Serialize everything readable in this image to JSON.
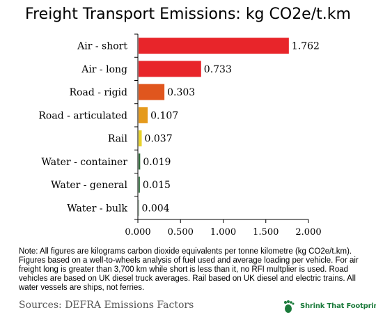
{
  "title": "Freight Transport Emissions: kg CO2e/t.km",
  "chart_data": {
    "type": "bar",
    "orientation": "horizontal",
    "categories": [
      "Air - short",
      "Air - long",
      "Road - rigid",
      "Road - articulated",
      "Rail",
      "Water - container",
      "Water - general",
      "Water - bulk"
    ],
    "values": [
      1.762,
      0.733,
      0.303,
      0.107,
      0.037,
      0.019,
      0.015,
      0.004
    ],
    "value_labels": [
      "1.762",
      "0.733",
      "0.303",
      "0.107",
      "0.037",
      "0.019",
      "0.015",
      "0.004"
    ],
    "bar_colors": [
      "#e8252a",
      "#e8252a",
      "#e0561e",
      "#e59a1c",
      "#e8d22a",
      "#2f6d3b",
      "#2f6d3b",
      "#2f6d3b"
    ],
    "xlim": [
      0,
      2
    ],
    "xticks": [
      "0.000",
      "0.500",
      "1.000",
      "1.500",
      "2.000"
    ],
    "xlabel": "",
    "ylabel": "",
    "grid": false,
    "legend": "none"
  },
  "note": "Note:  All figures are kilograms carbon dioxide equivalents per tonne kilometre (kg CO2e/t.km). Figures based on a well-to-wheels analysis of fuel used and average loading per vehicle. For air freight long is greater than 3,700 km while short is less than it, no RFI multplier is used.  Road vehicles are based on UK diesel truck averages.  Rail based on UK diesel and electric trains.  All water vessels are ships, not ferries.",
  "source": "Sources:  DEFRA Emissions Factors",
  "brand": "Shrink That Footprint"
}
